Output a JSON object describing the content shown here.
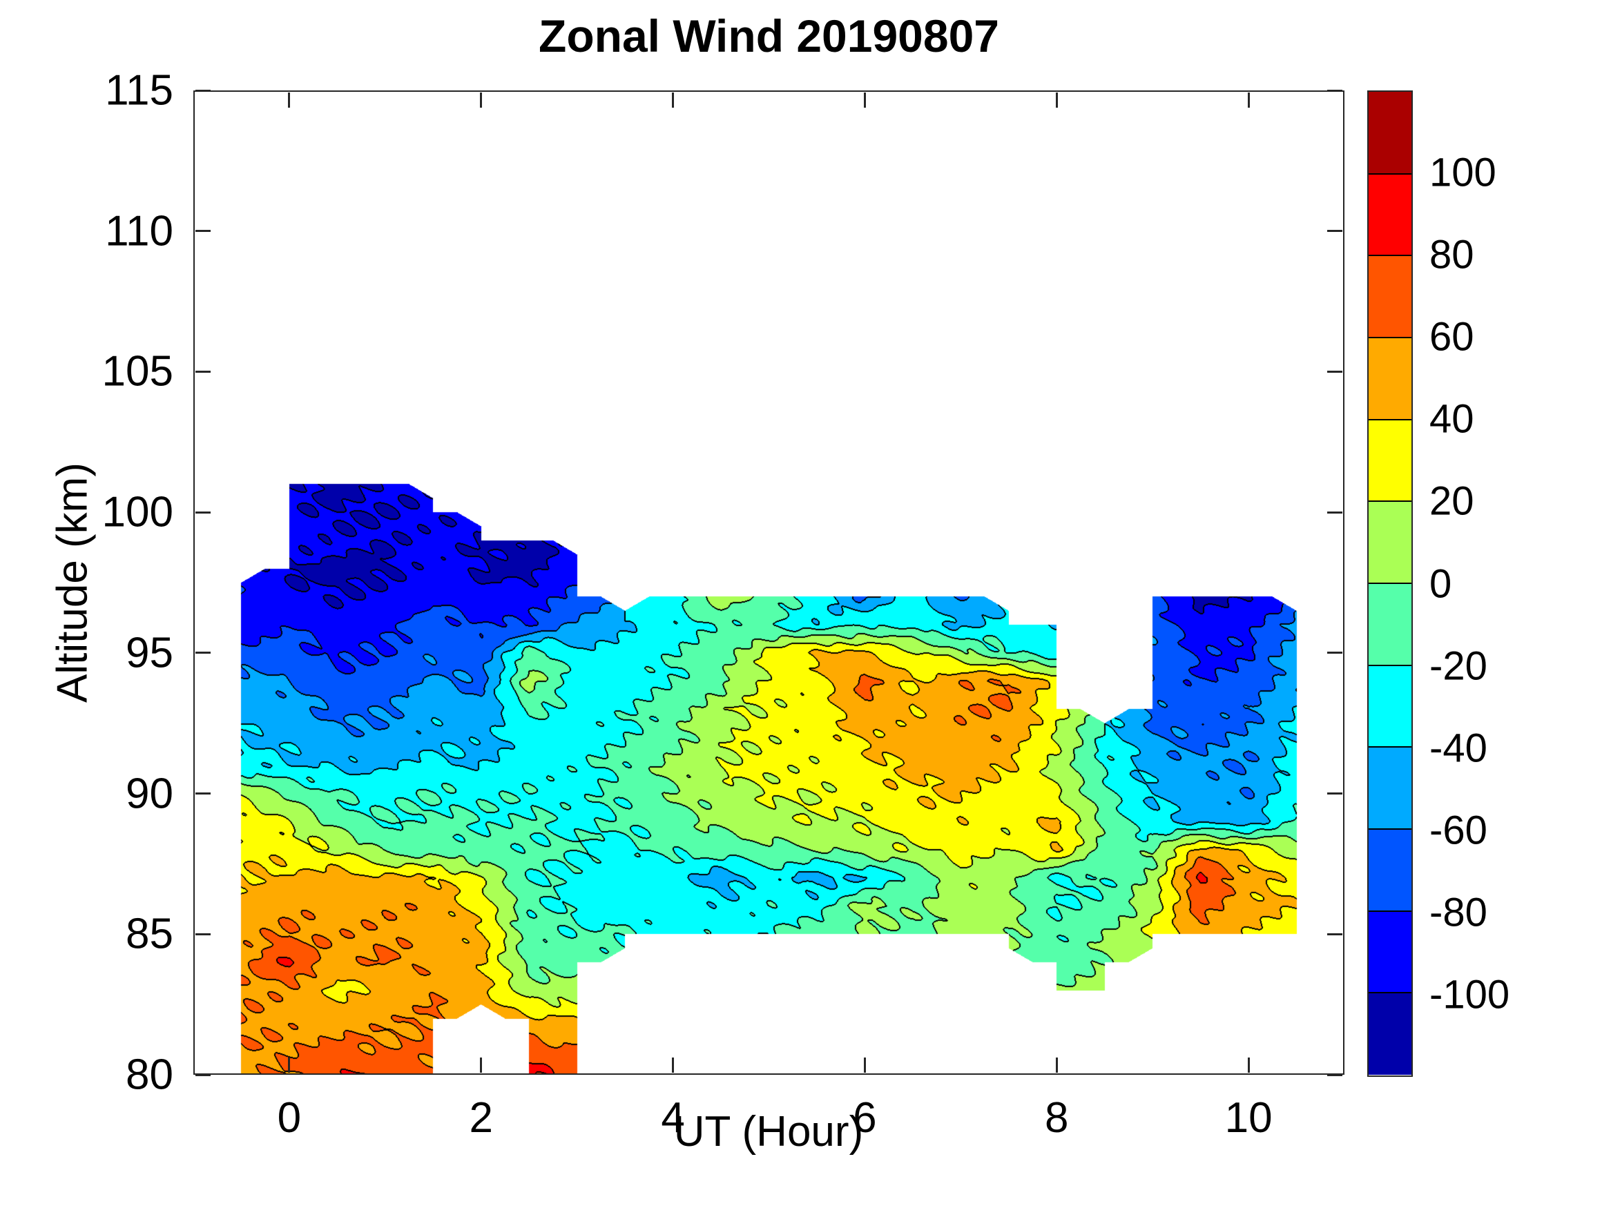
{
  "chart_data": {
    "type": "heatmap",
    "subtype": "filled_contour",
    "title": "Zonal Wind 20190807",
    "xlabel": "UT (Hour)",
    "ylabel": "Altitude (km)",
    "xlim": [
      -1,
      11
    ],
    "ylim": [
      80,
      115
    ],
    "xticks": [
      0,
      2,
      4,
      6,
      8,
      10
    ],
    "yticks": [
      80,
      85,
      90,
      95,
      100,
      105,
      110,
      115
    ],
    "grid_lines": "off",
    "legend_position": "colorbar-right",
    "colorbar": {
      "ticks": [
        100,
        80,
        60,
        40,
        20,
        0,
        -20,
        -40,
        -60,
        -80,
        -100
      ],
      "levels": [
        -120,
        -100,
        -80,
        -60,
        -40,
        -20,
        0,
        20,
        40,
        60,
        80,
        100,
        120
      ],
      "colors": [
        "#0000AA",
        "#0000FF",
        "#0055FF",
        "#00AAFF",
        "#00FFFF",
        "#55FFAA",
        "#AAFF55",
        "#FFFF00",
        "#FFAA00",
        "#FF5500",
        "#FF0000",
        "#AA0000"
      ]
    },
    "grid": {
      "hours": [
        -0.5,
        0,
        0.5,
        1,
        1.5,
        2,
        2.5,
        3,
        3.5,
        4,
        4.5,
        5,
        5.5,
        6,
        6.5,
        7,
        7.5,
        8,
        8.5,
        9,
        9.5,
        10,
        10.5
      ],
      "alts_desc": [
        102,
        101,
        100,
        99,
        98,
        97,
        96,
        95,
        94,
        93,
        92,
        91,
        90,
        89,
        88,
        87,
        86,
        85,
        84,
        83,
        82,
        81,
        80
      ],
      "values": [
        [
          null,
          null,
          null,
          null,
          null,
          null,
          null,
          null,
          null,
          null,
          null,
          null,
          null,
          null,
          null,
          null,
          null,
          null,
          null,
          null,
          null,
          null,
          null
        ],
        [
          null,
          -100,
          -105,
          -98,
          null,
          null,
          null,
          null,
          null,
          null,
          null,
          null,
          null,
          null,
          null,
          null,
          null,
          null,
          null,
          null,
          null,
          null,
          null
        ],
        [
          null,
          -95,
          -102,
          -100,
          -96,
          null,
          null,
          null,
          null,
          null,
          null,
          null,
          null,
          null,
          null,
          null,
          null,
          null,
          null,
          null,
          null,
          null,
          null
        ],
        [
          null,
          -88,
          -96,
          -100,
          -92,
          -100,
          -107,
          null,
          null,
          null,
          null,
          null,
          null,
          null,
          null,
          null,
          null,
          null,
          null,
          null,
          null,
          null,
          null
        ],
        [
          null,
          -103,
          -108,
          -104,
          -90,
          -102,
          -108,
          -85,
          null,
          null,
          null,
          null,
          null,
          null,
          null,
          null,
          null,
          null,
          null,
          null,
          null,
          null,
          null
        ],
        [
          -80,
          -95,
          -100,
          -95,
          -85,
          -95,
          -92,
          -75,
          null,
          -25,
          8,
          -5,
          -30,
          -65,
          -30,
          -60,
          null,
          null,
          null,
          -75,
          -105,
          -102,
          null
        ],
        [
          -95,
          -80,
          -90,
          -85,
          -70,
          -80,
          -80,
          -55,
          -40,
          -28,
          -15,
          -20,
          -35,
          -20,
          -28,
          -45,
          -30,
          -40,
          null,
          -70,
          -92,
          -88,
          -55
        ],
        [
          -75,
          -70,
          -85,
          -80,
          -65,
          -75,
          -10,
          -35,
          -35,
          -22,
          -8,
          25,
          48,
          40,
          25,
          5,
          -20,
          -30,
          null,
          -60,
          -85,
          -80,
          -50
        ],
        [
          -50,
          -60,
          -75,
          -70,
          -55,
          -65,
          8,
          -28,
          -30,
          -18,
          -5,
          25,
          30,
          65,
          38,
          55,
          62,
          30,
          null,
          -65,
          -80,
          -75,
          -45
        ],
        [
          -45,
          -50,
          -65,
          -62,
          -48,
          -55,
          -15,
          -30,
          -25,
          -10,
          15,
          25,
          28,
          60,
          40,
          58,
          60,
          25,
          null,
          -65,
          -70,
          -65,
          -40
        ],
        [
          -40,
          -45,
          -55,
          -55,
          -42,
          -48,
          -30,
          -30,
          -20,
          -5,
          15,
          25,
          30,
          42,
          48,
          52,
          55,
          20,
          -28,
          -60,
          -65,
          -55,
          -35
        ],
        [
          -35,
          -38,
          -45,
          -42,
          -35,
          -40,
          -30,
          -25,
          -15,
          5,
          20,
          28,
          25,
          35,
          45,
          48,
          40,
          15,
          -20,
          -50,
          -55,
          -60,
          -30
        ],
        [
          18,
          0,
          -20,
          -25,
          -20,
          -25,
          -22,
          -28,
          -15,
          0,
          12,
          20,
          22,
          28,
          38,
          42,
          30,
          22,
          -15,
          -40,
          -50,
          -58,
          -25
        ],
        [
          30,
          20,
          -10,
          -20,
          -15,
          -20,
          -18,
          -25,
          -18,
          -8,
          5,
          15,
          18,
          20,
          30,
          35,
          25,
          45,
          -5,
          -35,
          -45,
          -50,
          -15
        ],
        [
          35,
          30,
          18,
          -5,
          -12,
          -15,
          -15,
          -20,
          -25,
          -15,
          -10,
          -5,
          0,
          8,
          18,
          25,
          20,
          40,
          -10,
          -5,
          50,
          35,
          10
        ],
        [
          40,
          45,
          48,
          45,
          42,
          20,
          -20,
          -25,
          -30,
          -30,
          -52,
          -30,
          -50,
          -40,
          -15,
          18,
          5,
          -25,
          -20,
          5,
          85,
          45,
          35
        ],
        [
          45,
          55,
          50,
          55,
          55,
          30,
          -15,
          -25,
          -30,
          -28,
          -35,
          -25,
          -30,
          8,
          -5,
          12,
          8,
          -20,
          -15,
          10,
          70,
          48,
          38
        ],
        [
          50,
          62,
          55,
          58,
          50,
          45,
          -12,
          -18,
          -20,
          -25,
          -26,
          -20,
          -12,
          2,
          -5,
          8,
          5,
          -18,
          0,
          25,
          55,
          40,
          28
        ],
        [
          55,
          82,
          50,
          62,
          55,
          45,
          -8,
          -5,
          null,
          null,
          null,
          null,
          null,
          null,
          null,
          null,
          null,
          -12,
          2,
          null,
          null,
          null,
          null
        ],
        [
          58,
          55,
          35,
          42,
          58,
          48,
          10,
          5,
          null,
          null,
          null,
          null,
          null,
          null,
          null,
          null,
          null,
          0,
          5,
          null,
          null,
          null,
          null
        ],
        [
          60,
          52,
          48,
          55,
          60,
          null,
          45,
          40,
          null,
          null,
          null,
          null,
          null,
          null,
          null,
          null,
          null,
          null,
          null,
          null,
          null,
          null,
          null
        ],
        [
          58,
          60,
          65,
          60,
          62,
          null,
          70,
          60,
          null,
          null,
          null,
          null,
          null,
          null,
          null,
          null,
          null,
          null,
          null,
          null,
          null,
          null,
          null
        ],
        [
          55,
          60,
          78,
          78,
          62,
          null,
          85,
          70,
          null,
          null,
          null,
          null,
          null,
          null,
          null,
          null,
          null,
          null,
          null,
          null,
          null,
          null,
          null
        ]
      ]
    },
    "render": {
      "noise_terms": [
        [
          3,
          15,
          9,
          0
        ],
        [
          3,
          7,
          -5,
          1.3
        ],
        [
          2,
          23,
          3.7,
          0.5
        ]
      ],
      "line_color": "#000000"
    }
  }
}
